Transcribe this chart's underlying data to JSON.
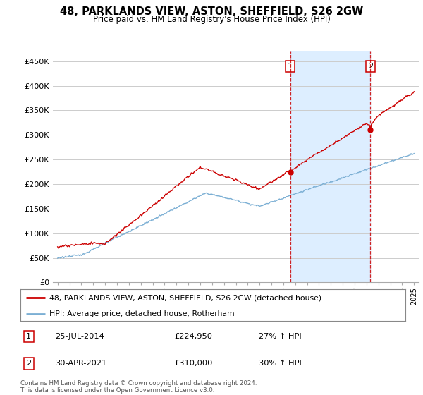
{
  "title": "48, PARKLANDS VIEW, ASTON, SHEFFIELD, S26 2GW",
  "subtitle": "Price paid vs. HM Land Registry's House Price Index (HPI)",
  "ylim": [
    0,
    470000
  ],
  "yticks": [
    0,
    50000,
    100000,
    150000,
    200000,
    250000,
    300000,
    350000,
    400000,
    450000
  ],
  "ytick_labels": [
    "£0",
    "£50K",
    "£100K",
    "£150K",
    "£200K",
    "£250K",
    "£300K",
    "£350K",
    "£400K",
    "£450K"
  ],
  "background_color": "#ffffff",
  "grid_color": "#cccccc",
  "red_line_color": "#cc0000",
  "blue_line_color": "#7bafd4",
  "highlight_color": "#ddeeff",
  "vline_color": "#cc0000",
  "vline1_x": 2014.57,
  "vline2_x": 2021.33,
  "marker1_x": 2014.57,
  "marker1_y": 224950,
  "marker2_x": 2021.33,
  "marker2_y": 310000,
  "legend_red": "48, PARKLANDS VIEW, ASTON, SHEFFIELD, S26 2GW (detached house)",
  "legend_blue": "HPI: Average price, detached house, Rotherham",
  "annotation1_num": "1",
  "annotation1_date": "25-JUL-2014",
  "annotation1_price": "£224,950",
  "annotation1_hpi": "27% ↑ HPI",
  "annotation2_num": "2",
  "annotation2_date": "30-APR-2021",
  "annotation2_price": "£310,000",
  "annotation2_hpi": "30% ↑ HPI",
  "footer": "Contains HM Land Registry data © Crown copyright and database right 2024.\nThis data is licensed under the Open Government Licence v3.0.",
  "xmin": 1994.6,
  "xmax": 2025.4
}
